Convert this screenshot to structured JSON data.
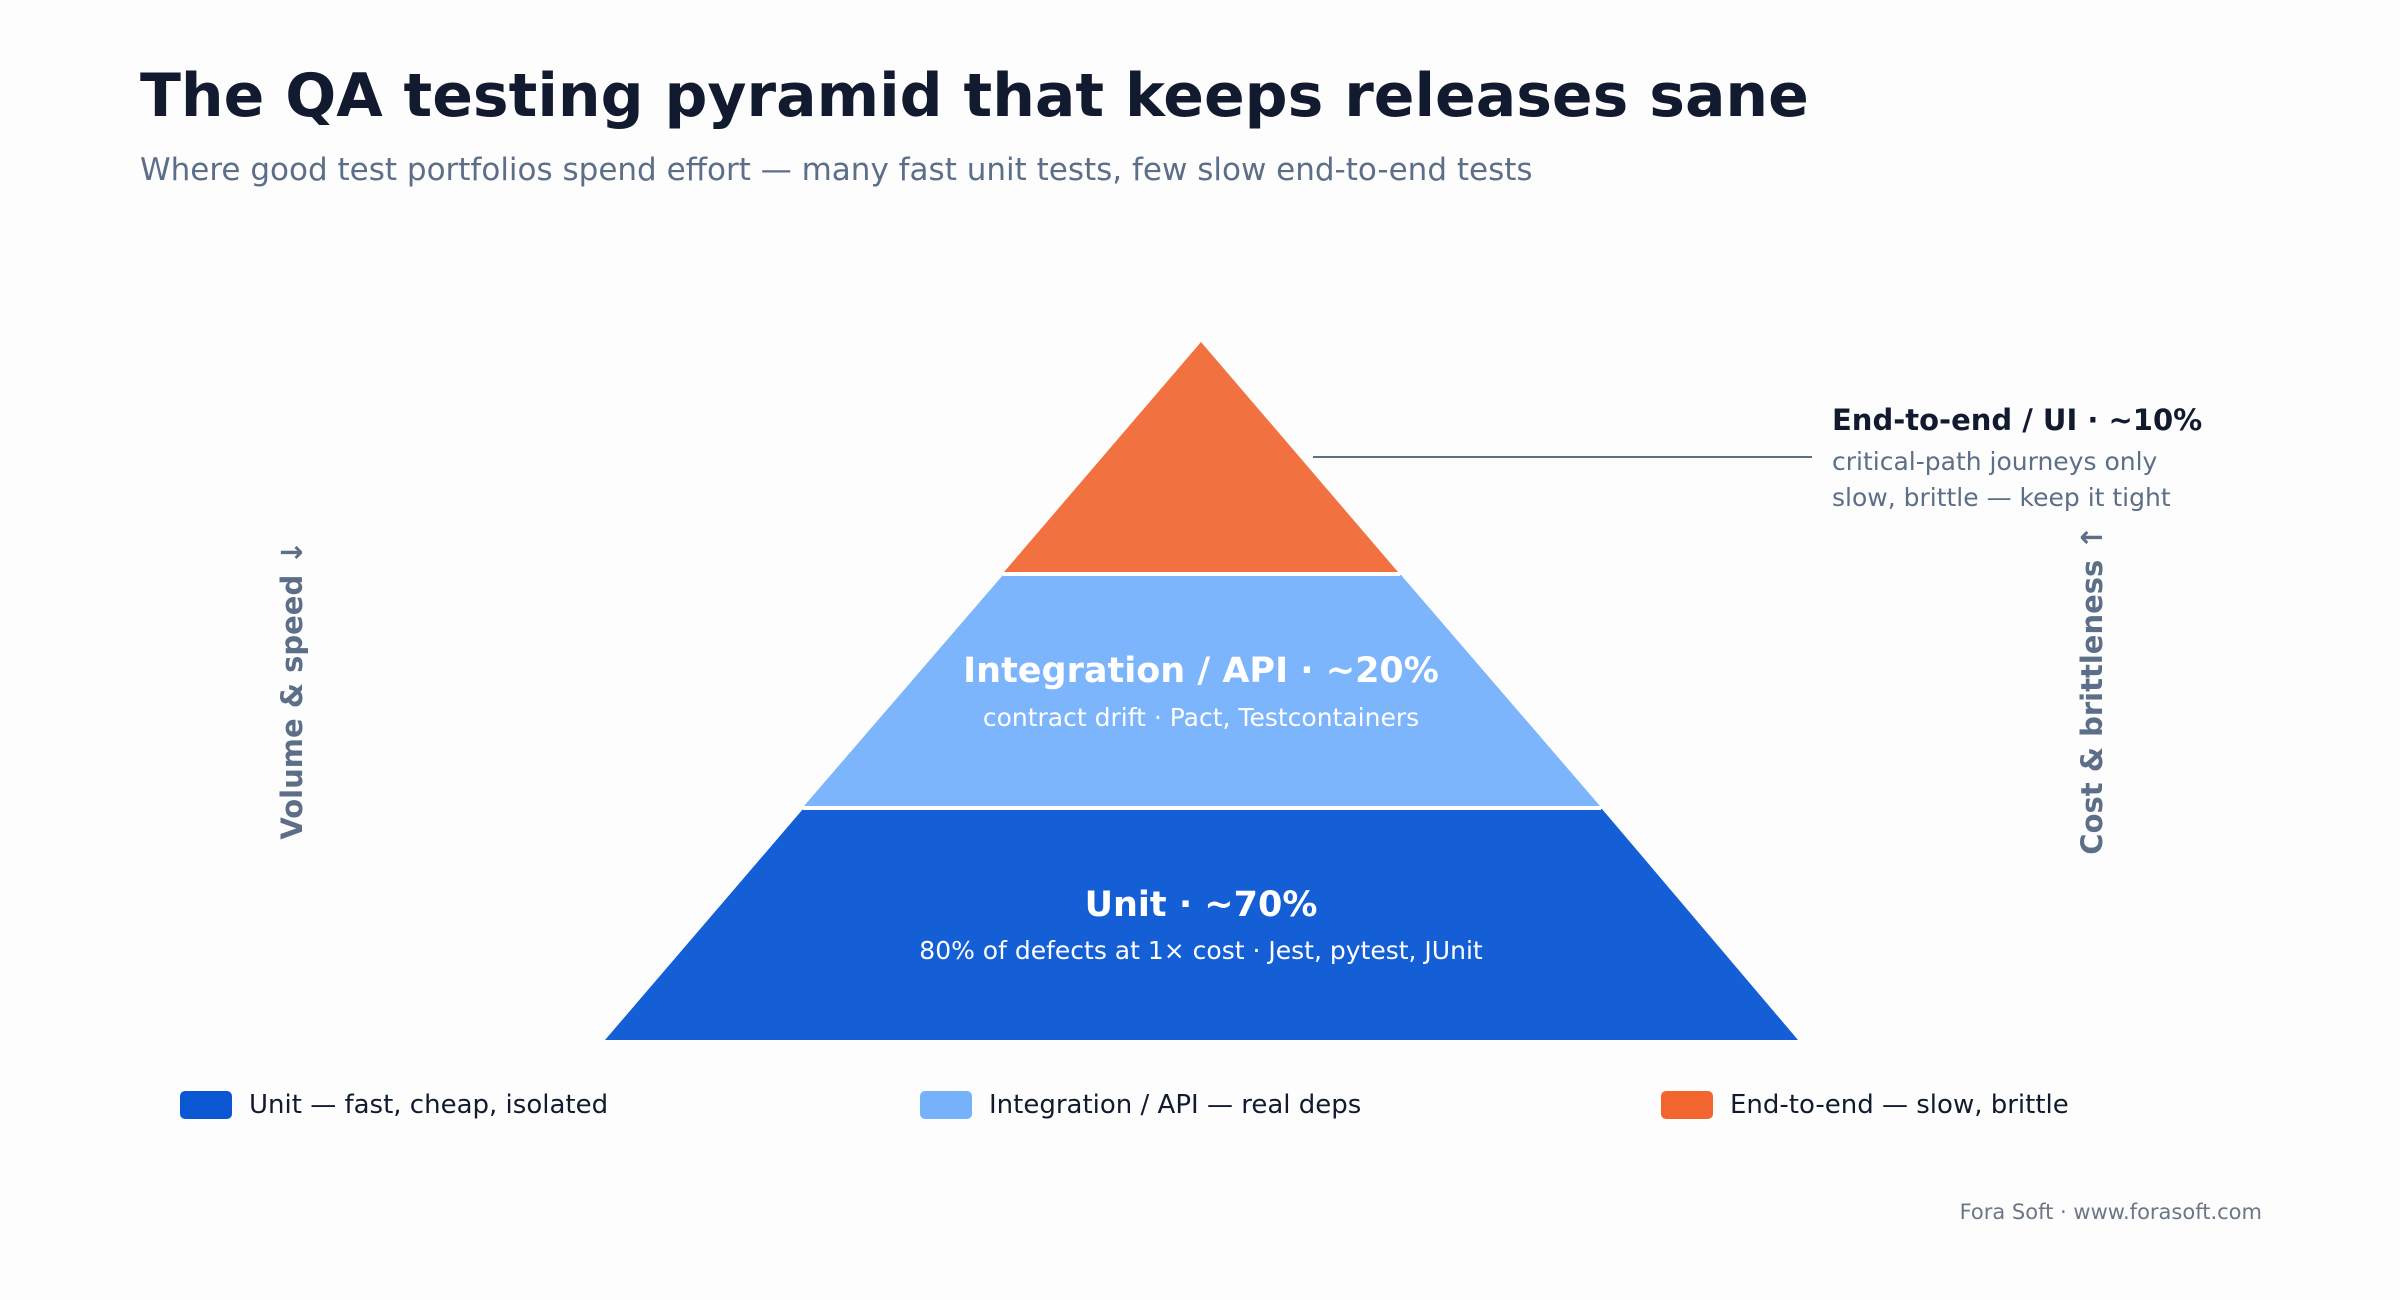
{
  "title": "The QA testing pyramid that keeps releases sane",
  "subtitle": "Where good test portfolios spend effort — many fast unit tests, few slow end-to-end tests",
  "pyramid": {
    "tiers": [
      {
        "id": "e2e",
        "label": "End-to-end / UI · ~10%",
        "lines": [
          "critical-path journeys only",
          "slow, brittle — keep it tight"
        ],
        "color": "#f27141"
      },
      {
        "id": "integration",
        "label": "Integration / API · ~20%",
        "detail": "contract drift · Pact, Testcontainers",
        "color": "#7cb5fc"
      },
      {
        "id": "unit",
        "label": "Unit · ~70%",
        "detail": "80% of defects at 1× cost · Jest, pytest, JUnit",
        "color": "#145ed6"
      }
    ]
  },
  "axes": {
    "left": "Volume & speed ↓",
    "right": "Cost & brittleness ↑"
  },
  "legend": [
    {
      "label": "Unit — fast, cheap, isolated",
      "color": "#0a56d3"
    },
    {
      "label": "Integration / API — real deps",
      "color": "#76b2fa"
    },
    {
      "label": "End-to-end — slow, brittle",
      "color": "#f2652f"
    }
  ],
  "footer": "Fora Soft · www.forasoft.com",
  "colors": {
    "text_dark": "#111a2e",
    "text_muted": "#5d6e88",
    "callout_line": "#5d6e88"
  }
}
